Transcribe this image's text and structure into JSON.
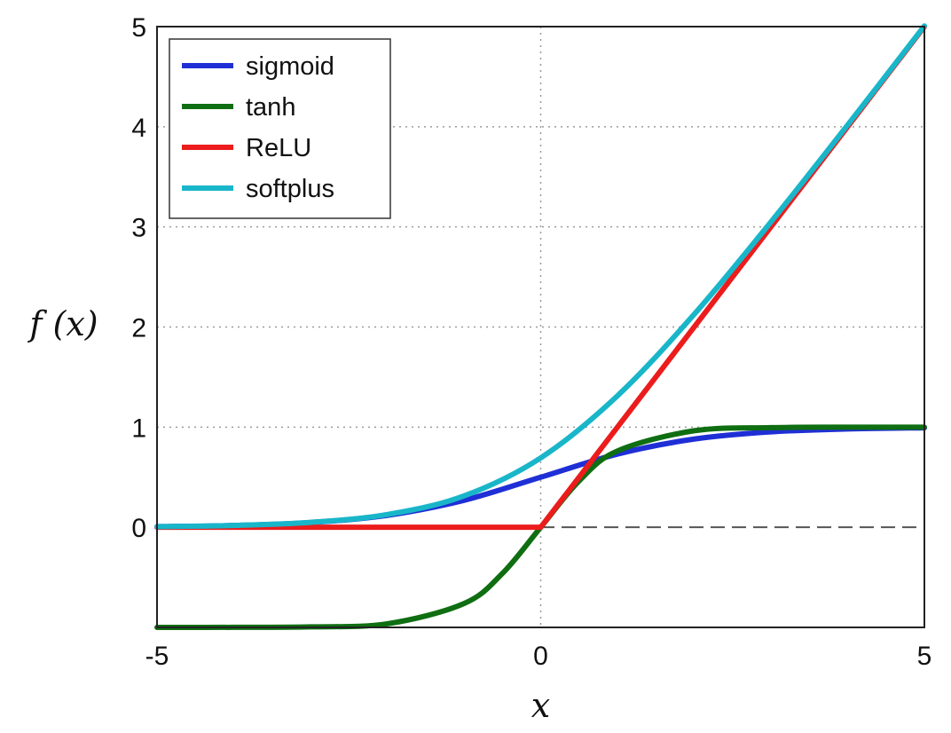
{
  "chart_data": {
    "type": "line",
    "title": "",
    "xlabel": "x",
    "ylabel": "f (x)",
    "xlim": [
      -5,
      5
    ],
    "ylim": [
      -1,
      5
    ],
    "grid": true,
    "grid_style": "dotted",
    "legend_position": "top-left",
    "x_ticks": [
      {
        "value": -5,
        "label": "-5"
      },
      {
        "value": 0,
        "label": "0"
      },
      {
        "value": 5,
        "label": "5"
      }
    ],
    "y_ticks": [
      {
        "value": 0,
        "label": "0"
      },
      {
        "value": 1,
        "label": "1"
      },
      {
        "value": 2,
        "label": "2"
      },
      {
        "value": 3,
        "label": "3"
      },
      {
        "value": 4,
        "label": "4"
      },
      {
        "value": 5,
        "label": "5"
      }
    ],
    "reference_line": {
      "y": 0,
      "style": "dashed",
      "color": "#555555"
    },
    "series": [
      {
        "name": "sigmoid",
        "color": "#1f2fd6",
        "x": [
          -5,
          -4,
          -3,
          -2,
          -1,
          0,
          1,
          2,
          3,
          4,
          5
        ],
        "y": [
          0.0067,
          0.018,
          0.047,
          0.119,
          0.269,
          0.5,
          0.731,
          0.881,
          0.953,
          0.982,
          0.993
        ]
      },
      {
        "name": "tanh",
        "color": "#0f6e12",
        "x": [
          -5,
          -4,
          -3,
          -2,
          -1,
          -0.5,
          0,
          0.5,
          1,
          2,
          3,
          4,
          5
        ],
        "y": [
          -0.9999,
          -0.9993,
          -0.995,
          -0.964,
          -0.762,
          -0.462,
          0,
          0.462,
          0.762,
          0.964,
          0.995,
          0.9993,
          0.9999
        ]
      },
      {
        "name": "ReLU",
        "color": "#ec1c1c",
        "x": [
          -5,
          0,
          5
        ],
        "y": [
          0,
          0,
          5
        ]
      },
      {
        "name": "softplus",
        "color": "#19b6c9",
        "x": [
          -5,
          -4,
          -3,
          -2,
          -1,
          0,
          1,
          2,
          3,
          4,
          5
        ],
        "y": [
          0.0067,
          0.018,
          0.049,
          0.127,
          0.313,
          0.693,
          1.313,
          2.127,
          3.049,
          4.018,
          5.007
        ]
      }
    ]
  }
}
